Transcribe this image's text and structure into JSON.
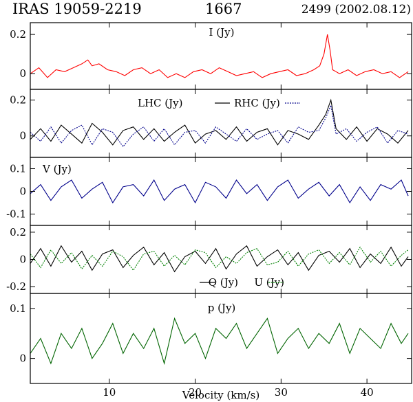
{
  "header": {
    "source": "IRAS 19059-2219",
    "frequency": "1667",
    "epoch": "2499 (2002.08.12)"
  },
  "xaxis": {
    "label": "Velocity (km/s)",
    "range": [
      0.8,
      45.2
    ],
    "ticks": [
      10,
      20,
      30,
      40
    ],
    "tick_labels": [
      "10",
      "20",
      "30",
      "40"
    ]
  },
  "colors": {
    "I": "#ff0000",
    "LHC": "#000000",
    "RHC": "#00008b",
    "V": "#00008b",
    "Q": "#000000",
    "U": "#008000",
    "p": "#006400"
  },
  "chart_data": [
    {
      "type": "line",
      "panel": "I",
      "label": "I (Jy)",
      "ylim": [
        -0.08,
        0.26
      ],
      "yticks": [
        0,
        0.2
      ],
      "ytick_labels": [
        "0",
        "0.2"
      ],
      "series": [
        {
          "name": "I (Jy)",
          "x": [
            0.8,
            1.8,
            2.8,
            3.8,
            4.8,
            5.8,
            6.8,
            7.5,
            8.0,
            8.8,
            9.8,
            10.8,
            11.8,
            12.8,
            13.8,
            14.8,
            15.8,
            16.8,
            17.8,
            18.8,
            19.8,
            20.8,
            21.8,
            22.8,
            23.8,
            24.8,
            25.8,
            26.8,
            27.8,
            28.8,
            29.8,
            30.8,
            31.8,
            32.8,
            33.8,
            34.5,
            35.0,
            35.4,
            35.7,
            36.0,
            36.4,
            36.8,
            37.8,
            38.8,
            39.8,
            40.8,
            41.8,
            42.8,
            43.8,
            44.8
          ],
          "values": [
            0.0,
            0.03,
            -0.02,
            0.02,
            0.01,
            0.03,
            0.05,
            0.07,
            0.04,
            0.05,
            0.02,
            0.01,
            -0.01,
            0.02,
            0.03,
            0.0,
            0.02,
            -0.02,
            0.0,
            -0.02,
            0.01,
            0.02,
            0.0,
            0.03,
            0.01,
            -0.01,
            0.0,
            0.01,
            -0.02,
            0.0,
            0.01,
            0.02,
            -0.01,
            0.0,
            0.02,
            0.04,
            0.1,
            0.2,
            0.12,
            0.02,
            0.01,
            0.0,
            0.02,
            -0.01,
            0.01,
            0.02,
            0.0,
            0.01,
            -0.02,
            0.01
          ]
        }
      ]
    },
    {
      "type": "line",
      "panel": "LHC-RHC",
      "ylim": [
        -0.12,
        0.26
      ],
      "yticks": [
        0,
        0.2
      ],
      "ytick_labels": [
        "0",
        "0.2"
      ],
      "series": [
        {
          "name": "LHC (Jy)",
          "x": [
            0.8,
            2.0,
            3.2,
            4.4,
            5.6,
            6.8,
            8.0,
            9.2,
            10.4,
            11.6,
            12.8,
            14.0,
            15.2,
            16.4,
            17.6,
            18.8,
            20.0,
            21.2,
            22.4,
            23.6,
            24.8,
            26.0,
            27.2,
            28.4,
            29.6,
            30.8,
            32.0,
            33.2,
            34.4,
            35.2,
            35.8,
            36.4,
            37.6,
            38.8,
            40.0,
            41.2,
            42.4,
            43.6,
            44.8
          ],
          "values": [
            -0.02,
            0.04,
            -0.03,
            0.06,
            0.01,
            -0.04,
            0.07,
            0.02,
            -0.05,
            0.03,
            0.05,
            -0.02,
            0.04,
            -0.03,
            0.02,
            0.06,
            -0.04,
            0.01,
            0.03,
            -0.02,
            0.05,
            -0.03,
            0.02,
            0.04,
            -0.05,
            0.03,
            0.01,
            -0.02,
            0.06,
            0.12,
            0.2,
            0.04,
            -0.02,
            0.05,
            -0.03,
            0.04,
            0.01,
            -0.04,
            0.03
          ]
        },
        {
          "name": "RHC (Jy)",
          "x": [
            0.8,
            2.0,
            3.2,
            4.4,
            5.6,
            6.8,
            8.0,
            9.2,
            10.4,
            11.6,
            12.8,
            14.0,
            15.2,
            16.4,
            17.6,
            18.8,
            20.0,
            21.2,
            22.4,
            23.6,
            24.8,
            26.0,
            27.2,
            28.4,
            29.6,
            30.8,
            32.0,
            33.2,
            34.4,
            35.2,
            35.8,
            36.4,
            37.6,
            38.8,
            40.0,
            41.2,
            42.4,
            43.6,
            44.8
          ],
          "values": [
            0.02,
            -0.03,
            0.05,
            -0.04,
            0.03,
            0.06,
            -0.05,
            0.04,
            0.02,
            -0.06,
            0.01,
            0.05,
            -0.03,
            0.04,
            -0.05,
            0.02,
            0.03,
            -0.04,
            0.05,
            0.01,
            -0.03,
            0.04,
            -0.02,
            0.01,
            0.03,
            -0.04,
            0.05,
            0.02,
            0.03,
            0.1,
            0.17,
            0.01,
            0.04,
            -0.03,
            0.02,
            0.05,
            -0.04,
            0.03,
            0.01
          ]
        }
      ],
      "legend": "top-center"
    },
    {
      "type": "line",
      "panel": "V",
      "label": "V (Jy)",
      "ylim": [
        -0.15,
        0.15
      ],
      "yticks": [
        -0.1,
        0,
        0.1
      ],
      "ytick_labels": [
        "-0.1",
        "0",
        "0.1"
      ],
      "series": [
        {
          "name": "V (Jy)",
          "x": [
            0.8,
            2.0,
            3.2,
            4.4,
            5.6,
            6.8,
            8.0,
            9.2,
            10.4,
            11.6,
            12.8,
            14.0,
            15.2,
            16.4,
            17.6,
            18.8,
            20.0,
            21.2,
            22.4,
            23.6,
            24.8,
            26.0,
            27.2,
            28.4,
            29.6,
            30.8,
            32.0,
            33.2,
            34.4,
            35.6,
            36.8,
            38.0,
            39.2,
            40.4,
            41.6,
            42.8,
            44.0,
            44.8
          ],
          "values": [
            -0.01,
            0.03,
            -0.04,
            0.02,
            0.05,
            -0.03,
            0.01,
            0.04,
            -0.05,
            0.02,
            0.03,
            -0.02,
            0.05,
            -0.04,
            0.01,
            0.03,
            -0.05,
            0.04,
            0.02,
            -0.03,
            0.05,
            -0.01,
            0.03,
            -0.04,
            0.02,
            0.05,
            -0.03,
            0.01,
            0.04,
            -0.02,
            0.03,
            -0.05,
            0.02,
            -0.04,
            0.03,
            0.01,
            0.05,
            -0.02
          ]
        }
      ]
    },
    {
      "type": "line",
      "panel": "Q-U",
      "ylim": [
        -0.25,
        0.25
      ],
      "yticks": [
        -0.2,
        0,
        0.2
      ],
      "ytick_labels": [
        "-0.2",
        "0",
        "0.2"
      ],
      "series": [
        {
          "name": "Q (Jy)",
          "x": [
            0.8,
            2.0,
            3.2,
            4.4,
            5.6,
            6.8,
            8.0,
            9.2,
            10.4,
            11.6,
            12.8,
            14.0,
            15.2,
            16.4,
            17.6,
            18.8,
            20.0,
            21.2,
            22.4,
            23.6,
            24.8,
            26.0,
            27.2,
            28.4,
            29.6,
            30.8,
            32.0,
            33.2,
            34.4,
            35.6,
            36.8,
            38.0,
            39.2,
            40.4,
            41.6,
            42.8,
            44.0,
            44.8
          ],
          "values": [
            -0.03,
            0.08,
            -0.05,
            0.1,
            -0.02,
            0.06,
            -0.08,
            0.04,
            0.07,
            -0.06,
            0.03,
            0.09,
            -0.04,
            0.05,
            -0.09,
            0.02,
            0.06,
            -0.03,
            0.08,
            -0.07,
            0.04,
            0.1,
            -0.05,
            0.02,
            0.07,
            -0.04,
            0.05,
            -0.08,
            0.03,
            0.06,
            -0.02,
            0.08,
            -0.06,
            0.04,
            -0.03,
            0.09,
            -0.05,
            0.02
          ]
        },
        {
          "name": "U (Jy)",
          "x": [
            0.8,
            2.0,
            3.2,
            4.4,
            5.6,
            6.8,
            8.0,
            9.2,
            10.4,
            11.6,
            12.8,
            14.0,
            15.2,
            16.4,
            17.6,
            18.8,
            20.0,
            21.2,
            22.4,
            23.6,
            24.8,
            26.0,
            27.2,
            28.4,
            29.6,
            30.8,
            32.0,
            33.2,
            34.4,
            35.6,
            36.8,
            38.0,
            39.2,
            40.4,
            41.6,
            42.8,
            44.0,
            44.8
          ],
          "values": [
            0.04,
            -0.06,
            0.07,
            -0.03,
            0.05,
            -0.07,
            0.03,
            -0.05,
            0.06,
            0.02,
            -0.08,
            0.04,
            0.06,
            -0.05,
            0.03,
            -0.04,
            0.07,
            0.05,
            -0.06,
            0.02,
            -0.03,
            0.05,
            0.08,
            -0.04,
            -0.02,
            0.06,
            -0.05,
            0.04,
            0.07,
            -0.03,
            0.05,
            -0.04,
            0.09,
            -0.02,
            0.06,
            -0.05,
            0.03,
            0.07
          ]
        }
      ],
      "legend": "bottom-center"
    },
    {
      "type": "line",
      "panel": "p",
      "label": "p (Jy)",
      "ylim": [
        -0.05,
        0.13
      ],
      "yticks": [
        0,
        0.1
      ],
      "ytick_labels": [
        "0",
        "0.1"
      ],
      "series": [
        {
          "name": "p (Jy)",
          "x": [
            0.8,
            2.0,
            3.2,
            4.4,
            5.6,
            6.8,
            8.0,
            9.2,
            10.4,
            11.6,
            12.8,
            14.0,
            15.2,
            16.4,
            17.6,
            18.8,
            20.0,
            21.2,
            22.4,
            23.6,
            24.8,
            26.0,
            27.2,
            28.4,
            29.6,
            30.8,
            32.0,
            33.2,
            34.4,
            35.6,
            36.8,
            38.0,
            39.2,
            40.4,
            41.6,
            42.8,
            44.0,
            44.8
          ],
          "values": [
            0.01,
            0.04,
            -0.01,
            0.05,
            0.02,
            0.06,
            0.0,
            0.03,
            0.07,
            0.01,
            0.05,
            0.02,
            0.06,
            -0.01,
            0.08,
            0.03,
            0.05,
            0.0,
            0.06,
            0.04,
            0.07,
            0.02,
            0.05,
            0.08,
            0.01,
            0.04,
            0.06,
            0.02,
            0.05,
            0.03,
            0.07,
            0.01,
            0.06,
            0.04,
            0.02,
            0.07,
            0.03,
            0.05
          ]
        }
      ]
    }
  ]
}
